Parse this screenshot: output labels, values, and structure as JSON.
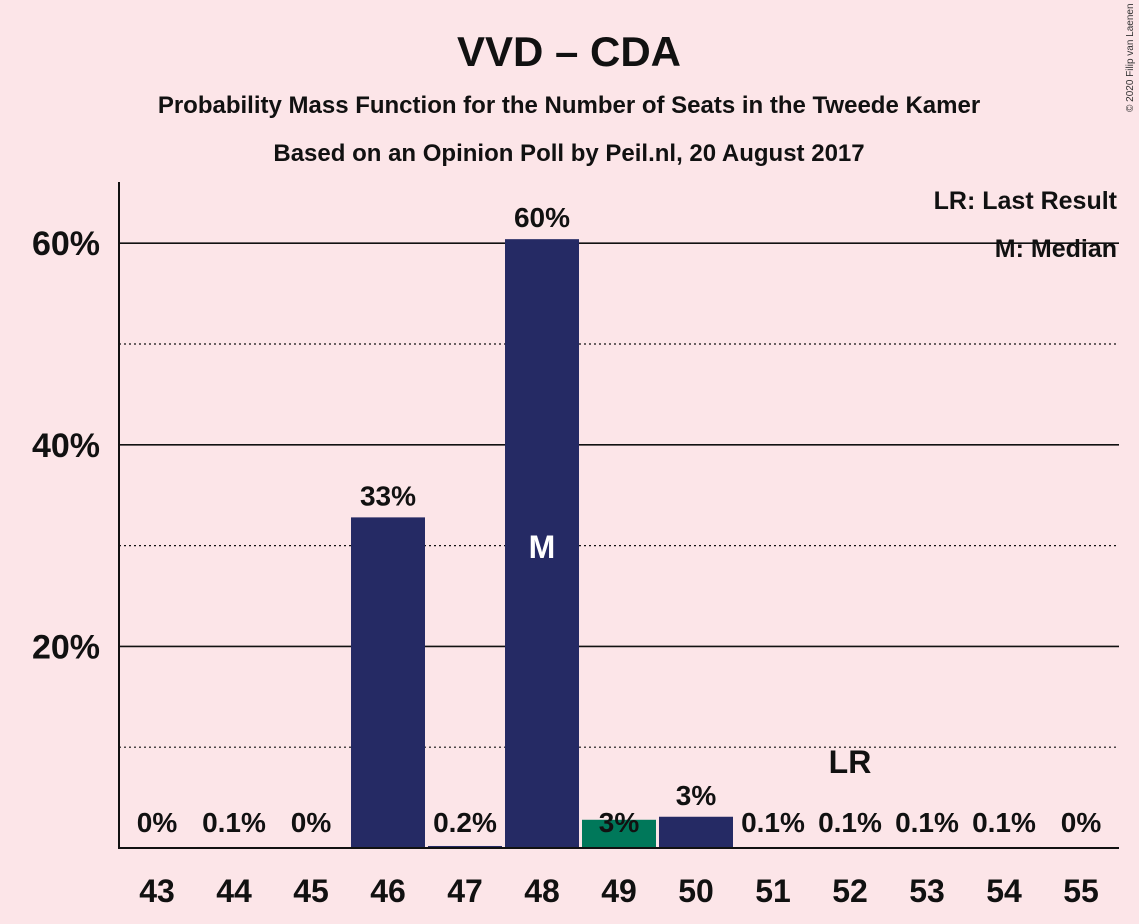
{
  "chart_data": {
    "type": "bar",
    "title": "VVD – CDA",
    "subtitle": "Probability Mass Function for the Number of Seats in the Tweede Kamer",
    "subtitle2": "Based on an Opinion Poll by Peil.nl, 20 August 2017",
    "copyright": "© 2020 Filip van Laenen",
    "categories": [
      "43",
      "44",
      "45",
      "46",
      "47",
      "48",
      "49",
      "50",
      "51",
      "52",
      "53",
      "54",
      "55"
    ],
    "values": [
      0,
      0.1,
      0,
      32.8,
      0.2,
      60.4,
      2.8,
      3.1,
      0.1,
      0.1,
      0.1,
      0.1,
      0
    ],
    "data_labels": [
      "0%",
      "0.1%",
      "0%",
      "33%",
      "0.2%",
      "60%",
      "3%",
      "3%",
      "0.1%",
      "0.1%",
      "0.1%",
      "0.1%",
      "0%"
    ],
    "bar_colors": [
      "#252A64",
      "#252A64",
      "#252A64",
      "#252A64",
      "#252A64",
      "#252A64",
      "#00785A",
      "#252A64",
      "#252A64",
      "#252A64",
      "#252A64",
      "#252A64",
      "#252A64"
    ],
    "ylim": [
      0,
      66
    ],
    "yticks": [
      20,
      40,
      60
    ],
    "ytick_labels": [
      "20%",
      "40%",
      "60%"
    ],
    "minor_gridlines": [
      10,
      30,
      50
    ],
    "median_category": "48",
    "median_marker": "M",
    "last_result_category": "52",
    "last_result_marker": "LR",
    "legend": [
      "LR: Last Result",
      "M: Median"
    ],
    "legend_position": "top-right",
    "background": "#FCE5E8",
    "xlabel": "",
    "ylabel": ""
  }
}
